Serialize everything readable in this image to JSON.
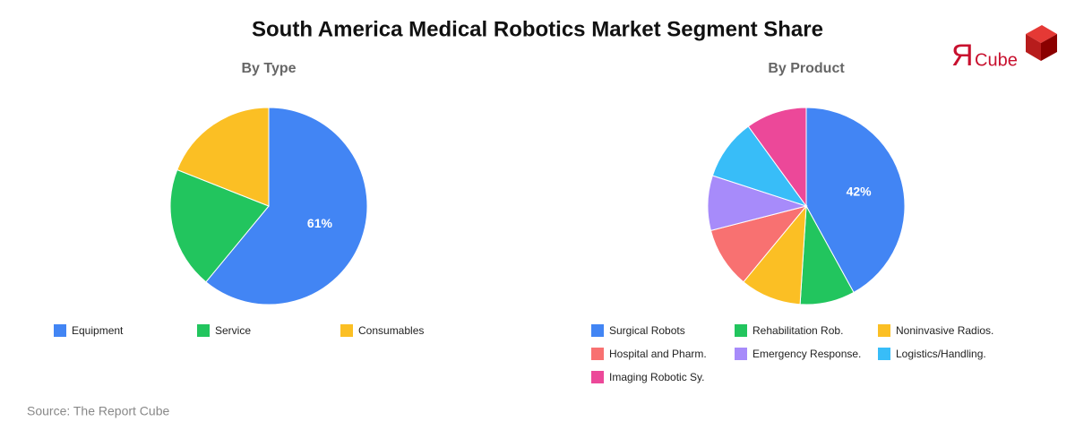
{
  "title": "South America Medical Robotics Market Segment Share",
  "source": "Source: The Report Cube",
  "logo": {
    "mark": "Я",
    "text": "Cube"
  },
  "chart_data": [
    {
      "type": "pie",
      "title": "By Type",
      "categories": [
        "Equipment",
        "Service",
        "Consumables"
      ],
      "values": [
        61,
        20,
        19
      ],
      "value_labels": [
        "61%",
        null,
        null
      ],
      "colors": [
        "#4285f4",
        "#22c55e",
        "#fbbf24"
      ]
    },
    {
      "type": "pie",
      "title": "By Product",
      "categories": [
        "Surgical Robots",
        "Rehabilitation Rob.",
        "Noninvasive Radios.",
        "Hospital and Pharm.",
        "Emergency Response.",
        "Logistics/Handling.",
        "Imaging Robotic Sy."
      ],
      "values": [
        42,
        9,
        10,
        10,
        9,
        10,
        10
      ],
      "value_labels": [
        "42%",
        null,
        null,
        null,
        null,
        null,
        null
      ],
      "colors": [
        "#4285f4",
        "#22c55e",
        "#fbbf24",
        "#f87171",
        "#a78bfa",
        "#38bdf8",
        "#ec4899"
      ]
    }
  ]
}
